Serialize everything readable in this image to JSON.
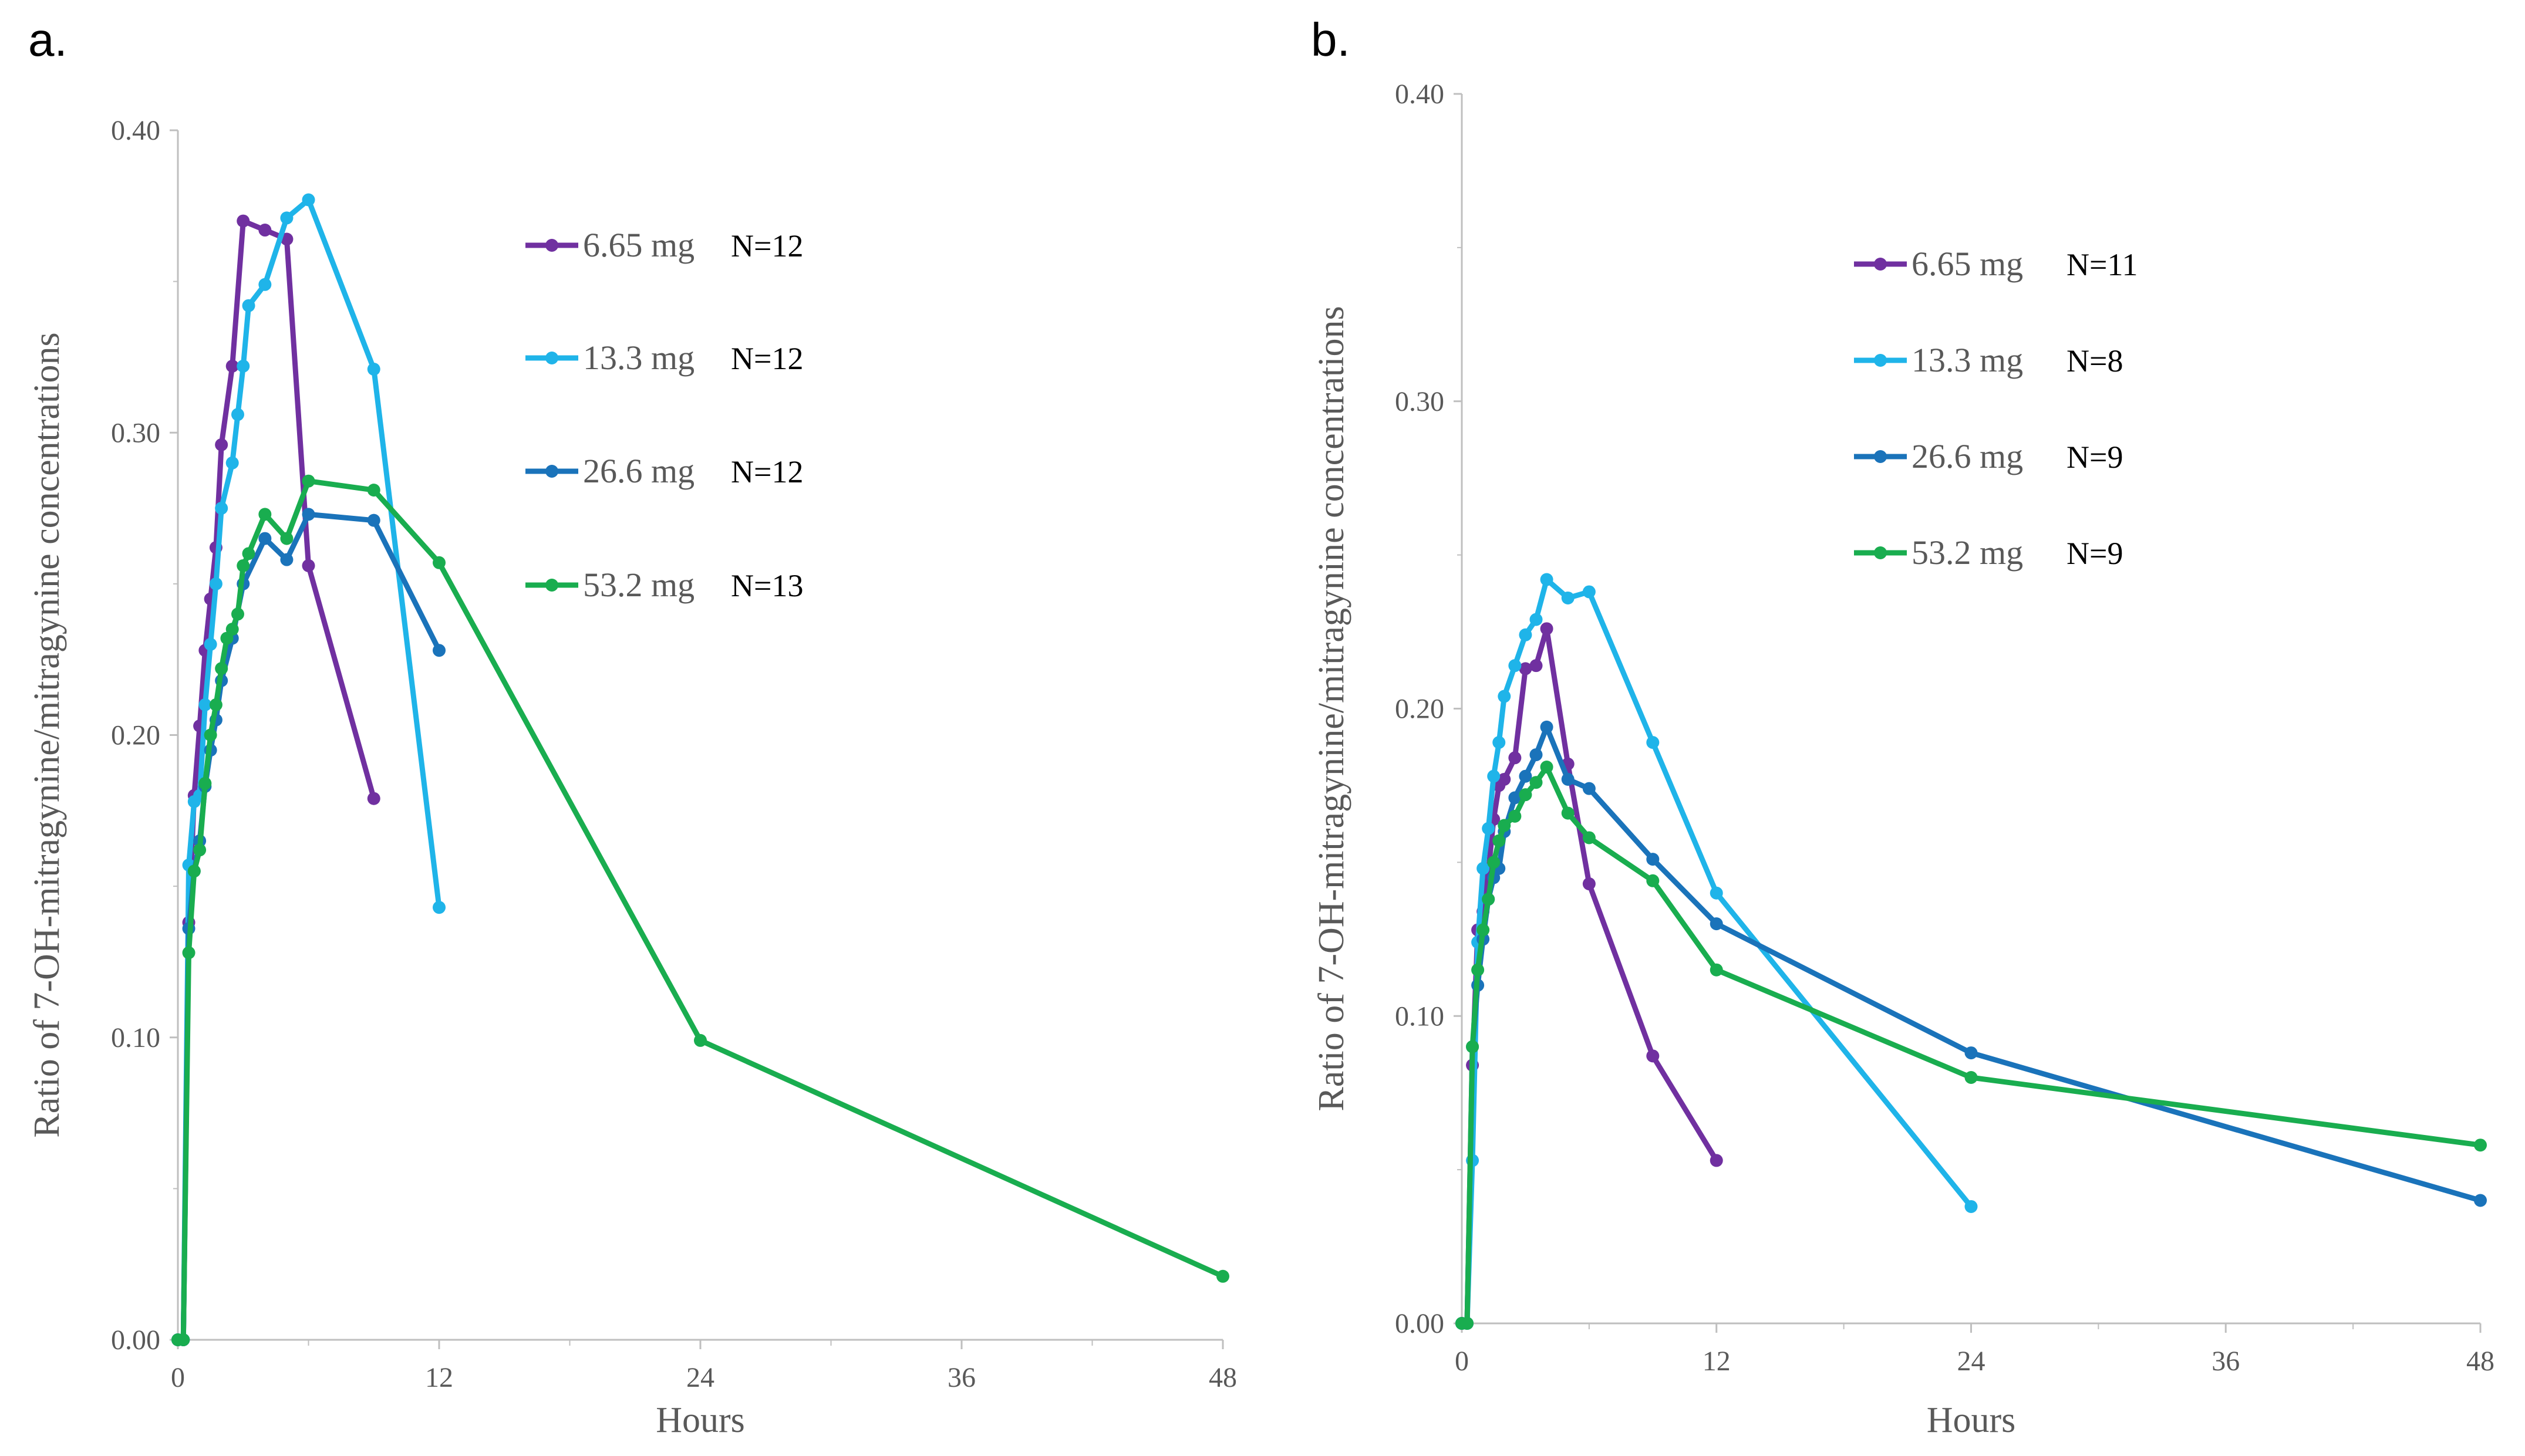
{
  "panels": [
    {
      "label": "a.",
      "chart_data": {
        "type": "line",
        "title": "",
        "xlabel": "Hours",
        "ylabel": "Ratio of 7-OH-mitragynine/mitragynine concentrations",
        "xlim": [
          0,
          48
        ],
        "ylim": [
          0,
          0.4
        ],
        "xticks": [
          0,
          12,
          24,
          36,
          48
        ],
        "yticks": [
          0.0,
          0.1,
          0.2,
          0.3,
          0.4
        ],
        "ytick_labels": [
          "0.00",
          "0.10",
          "0.20",
          "0.30",
          "0.40"
        ],
        "legend_position": "top-right",
        "series": [
          {
            "name": "6.65 mg",
            "n_label": "N=12",
            "color": "#7030A0",
            "x": [
              0,
              0.25,
              0.5,
              0.75,
              1,
              1.25,
              1.5,
              1.75,
              2,
              2.5,
              3,
              4,
              5,
              6,
              9
            ],
            "y": [
              0,
              0,
              0.138,
              0.18,
              0.203,
              0.228,
              0.245,
              0.262,
              0.296,
              0.322,
              0.37,
              0.367,
              0.364,
              0.256,
              0.179
            ]
          },
          {
            "name": "13.3 mg",
            "n_label": "N=12",
            "color": "#1FB4E9",
            "x": [
              0,
              0.25,
              0.5,
              0.75,
              1,
              1.25,
              1.5,
              1.75,
              2,
              2.5,
              2.75,
              3,
              3.25,
              4,
              5,
              6,
              9,
              12
            ],
            "y": [
              0,
              0,
              0.157,
              0.178,
              0.18,
              0.21,
              0.23,
              0.25,
              0.275,
              0.29,
              0.306,
              0.322,
              0.342,
              0.349,
              0.371,
              0.377,
              0.321,
              0.143
            ]
          },
          {
            "name": "26.6 mg",
            "n_label": "N=12",
            "color": "#1A73BA",
            "x": [
              0,
              0.25,
              0.5,
              0.75,
              1,
              1.25,
              1.5,
              1.75,
              2,
              2.5,
              3,
              4,
              5,
              6,
              9,
              12
            ],
            "y": [
              0,
              0,
              0.136,
              0.155,
              0.165,
              0.183,
              0.195,
              0.205,
              0.218,
              0.232,
              0.25,
              0.265,
              0.258,
              0.273,
              0.271,
              0.228
            ]
          },
          {
            "name": "53.2 mg",
            "n_label": "N=13",
            "color": "#19AD4F",
            "x": [
              0,
              0.25,
              0.5,
              0.75,
              1,
              1.25,
              1.5,
              1.75,
              2,
              2.25,
              2.5,
              2.75,
              3,
              3.25,
              4,
              5,
              6,
              9,
              12,
              24,
              48
            ],
            "y": [
              0,
              0,
              0.128,
              0.155,
              0.162,
              0.184,
              0.2,
              0.21,
              0.222,
              0.232,
              0.235,
              0.24,
              0.256,
              0.26,
              0.273,
              0.265,
              0.284,
              0.281,
              0.257,
              0.099,
              0.021
            ]
          }
        ]
      }
    },
    {
      "label": "b.",
      "chart_data": {
        "type": "line",
        "title": "",
        "xlabel": "Hours",
        "ylabel": "Ratio of 7-OH-mitragynine/mitragynine concentrations",
        "xlim": [
          0,
          48
        ],
        "ylim": [
          0,
          0.4
        ],
        "xticks": [
          0,
          12,
          24,
          36,
          48
        ],
        "yticks": [
          0.0,
          0.1,
          0.2,
          0.3,
          0.4
        ],
        "ytick_labels": [
          "0.00",
          "0.10",
          "0.20",
          "0.30",
          "0.40"
        ],
        "legend_position": "top-right",
        "series": [
          {
            "name": "6.65 mg",
            "n_label": "N=11",
            "color": "#7030A0",
            "x": [
              0,
              0.25,
              0.5,
              0.75,
              1,
              1.25,
              1.5,
              1.75,
              2,
              2.5,
              3,
              3.5,
              4,
              5,
              6,
              9,
              12
            ],
            "y": [
              0,
              0,
              0.084,
              0.128,
              0.134,
              0.147,
              0.164,
              0.175,
              0.177,
              0.184,
              0.213,
              0.214,
              0.226,
              0.182,
              0.143,
              0.087,
              0.053
            ]
          },
          {
            "name": "13.3 mg",
            "n_label": "N=8",
            "color": "#1FB4E9",
            "x": [
              0,
              0.25,
              0.5,
              0.75,
              1,
              1.25,
              1.5,
              1.75,
              2,
              2.5,
              3,
              3.5,
              4,
              5,
              6,
              9,
              12,
              24
            ],
            "y": [
              0,
              0,
              0.053,
              0.124,
              0.148,
              0.161,
              0.178,
              0.189,
              0.204,
              0.214,
              0.224,
              0.229,
              0.242,
              0.236,
              0.238,
              0.189,
              0.14,
              0.038
            ]
          },
          {
            "name": "26.6 mg",
            "n_label": "N=9",
            "color": "#1A73BA",
            "x": [
              0,
              0.25,
              0.5,
              0.75,
              1,
              1.25,
              1.5,
              1.75,
              2,
              2.5,
              3,
              3.5,
              4,
              5,
              6,
              9,
              12,
              24,
              48
            ],
            "y": [
              0,
              0,
              0.09,
              0.11,
              0.125,
              0.138,
              0.145,
              0.148,
              0.16,
              0.171,
              0.178,
              0.185,
              0.194,
              0.177,
              0.174,
              0.151,
              0.13,
              0.088,
              0.04
            ]
          },
          {
            "name": "53.2 mg",
            "n_label": "N=9",
            "color": "#19AD4F",
            "x": [
              0,
              0.25,
              0.5,
              0.75,
              1,
              1.25,
              1.5,
              1.75,
              2,
              2.5,
              3,
              3.5,
              4,
              5,
              6,
              9,
              12,
              24,
              48
            ],
            "y": [
              0,
              0,
              0.09,
              0.115,
              0.128,
              0.138,
              0.15,
              0.157,
              0.162,
              0.165,
              0.172,
              0.176,
              0.181,
              0.166,
              0.158,
              0.144,
              0.115,
              0.08,
              0.058
            ]
          }
        ]
      }
    }
  ]
}
